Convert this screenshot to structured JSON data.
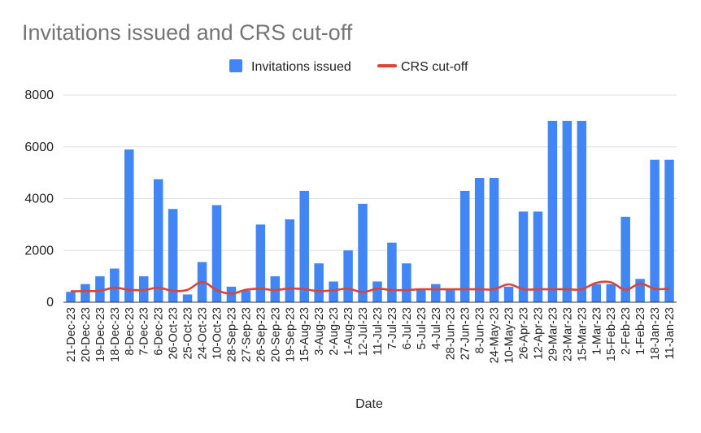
{
  "chart_data": {
    "type": "bar",
    "title": "Invitations issued and CRS cut-off",
    "xlabel": "Date",
    "ylabel": "",
    "ylim": [
      0,
      8000
    ],
    "yticks": [
      "0",
      "2000",
      "4000",
      "6000",
      "8000"
    ],
    "grid": true,
    "legend_position": "top",
    "categories": [
      "21-Dec-23",
      "20-Dec-23",
      "19-Dec-23",
      "18-Dec-23",
      "8-Dec-23",
      "7-Dec-23",
      "6-Dec-23",
      "26-Oct-23",
      "25-Oct-23",
      "24-Oct-23",
      "10-Oct-23",
      "28-Sep-23",
      "27-Sep-23",
      "26-Sep-23",
      "20-Sep-23",
      "19-Sep-23",
      "15-Aug-23",
      "3-Aug-23",
      "2-Aug-23",
      "1-Aug-23",
      "12-Jul-23",
      "11-Jul-23",
      "7-Jul-23",
      "6-Jul-23",
      "5-Jul-23",
      "4-Jul-23",
      "28-Jun-23",
      "27-Jun-23",
      "8-Jun-23",
      "24-May-23",
      "10-May-23",
      "26-Apr-23",
      "12-Apr-23",
      "29-Mar-23",
      "23-Mar-23",
      "15-Mar-23",
      "1-Mar-23",
      "15-Feb-23",
      "2-Feb-23",
      "1-Feb-23",
      "18-Jan-23",
      "11-Jan-23"
    ],
    "series": [
      {
        "name": "Invitations issued",
        "type": "bar",
        "color": "#4285f4",
        "values": [
          400,
          700,
          1000,
          1300,
          5900,
          1000,
          4750,
          3600,
          300,
          1550,
          3750,
          600,
          450,
          3000,
          1000,
          3200,
          4300,
          1500,
          800,
          2000,
          3800,
          800,
          2300,
          1500,
          500,
          700,
          500,
          4300,
          4800,
          4800,
          600,
          3500,
          3500,
          7000,
          7000,
          7000,
          700,
          700,
          3300,
          900,
          5500,
          5500
        ]
      },
      {
        "name": "CRS cut-off",
        "type": "line",
        "color": "#db4437",
        "values": [
          420,
          430,
          440,
          560,
          480,
          470,
          560,
          440,
          480,
          780,
          470,
          330,
          480,
          520,
          470,
          530,
          500,
          430,
          460,
          520,
          390,
          520,
          470,
          470,
          500,
          500,
          500,
          500,
          500,
          500,
          690,
          500,
          500,
          500,
          500,
          500,
          750,
          770,
          480,
          720,
          520,
          520
        ]
      }
    ]
  }
}
